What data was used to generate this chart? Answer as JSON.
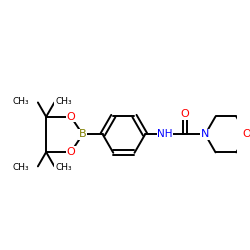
{
  "background_color": "#ffffff",
  "bond_color": "#000000",
  "atom_colors": {
    "O": "#ff0000",
    "N": "#0000ff",
    "B": "#808000",
    "C": "#000000"
  },
  "figsize": [
    2.5,
    2.5
  ],
  "dpi": 100,
  "xlim": [
    0,
    10
  ],
  "ylim": [
    0,
    10
  ]
}
